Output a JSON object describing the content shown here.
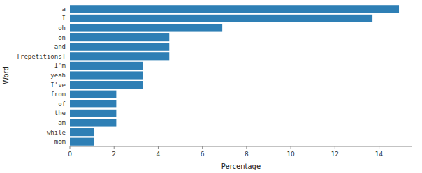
{
  "chart_data": {
    "type": "bar",
    "orientation": "horizontal",
    "categories": [
      "a",
      "I",
      "oh",
      "on",
      "and",
      "[repetitions]",
      "I'm",
      "yeah",
      "I've",
      "from",
      "of",
      "the",
      "am",
      "while",
      "mom"
    ],
    "values": [
      14.9,
      13.7,
      6.9,
      4.5,
      4.5,
      4.5,
      3.3,
      3.3,
      3.3,
      2.1,
      2.1,
      2.1,
      2.1,
      1.1,
      1.1
    ],
    "color": "#2e7fb5",
    "xlabel": "Percentage",
    "ylabel": "Word",
    "xlim": [
      0,
      15.5
    ],
    "xticks": [
      0,
      2,
      4,
      6,
      8,
      10,
      12,
      14
    ],
    "grid": false
  }
}
